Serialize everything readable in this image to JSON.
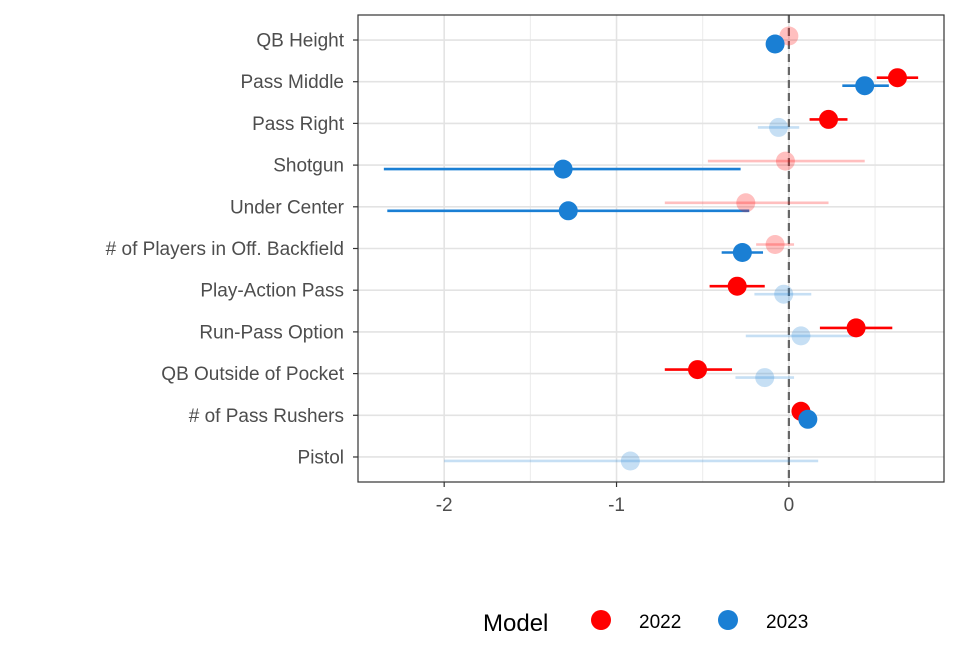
{
  "chart_data": {
    "type": "scatter",
    "subtype": "dot-and-whisker",
    "title": "",
    "xlabel": "",
    "ylabel": "",
    "xlim": [
      -2.5,
      0.9
    ],
    "x_ticks": [
      -2,
      -1,
      0
    ],
    "x_tick_labels": [
      "-2",
      "-1",
      "0"
    ],
    "reference_line": {
      "x": 0,
      "style": "dashed",
      "color": "#666666"
    },
    "grid": true,
    "legend": {
      "title": "Model",
      "position": "bottom"
    },
    "categories": [
      "QB Height",
      "Pass Middle",
      "Pass Right",
      "Shotgun",
      "Under Center",
      "# of Players in Off. Backfield",
      "Play-Action Pass",
      "Run-Pass Option",
      "QB Outside of Pocket",
      "# of Pass Rushers",
      "Pistol"
    ],
    "series": [
      {
        "name": "2022",
        "color": "#ff0000",
        "points": [
          {
            "category": "QB Height",
            "estimate": 0.0,
            "lower": null,
            "upper": null,
            "significant": false
          },
          {
            "category": "Pass Middle",
            "estimate": 0.63,
            "lower": 0.51,
            "upper": 0.75,
            "significant": true
          },
          {
            "category": "Pass Right",
            "estimate": 0.23,
            "lower": 0.12,
            "upper": 0.34,
            "significant": true
          },
          {
            "category": "Shotgun",
            "estimate": -0.02,
            "lower": -0.47,
            "upper": 0.44,
            "significant": false
          },
          {
            "category": "Under Center",
            "estimate": -0.25,
            "lower": -0.72,
            "upper": 0.23,
            "significant": false
          },
          {
            "category": "# of Players in Off. Backfield",
            "estimate": -0.08,
            "lower": -0.19,
            "upper": 0.03,
            "significant": false
          },
          {
            "category": "Play-Action Pass",
            "estimate": -0.3,
            "lower": -0.46,
            "upper": -0.14,
            "significant": true
          },
          {
            "category": "Run-Pass Option",
            "estimate": 0.39,
            "lower": 0.18,
            "upper": 0.6,
            "significant": true
          },
          {
            "category": "QB Outside of Pocket",
            "estimate": -0.53,
            "lower": -0.72,
            "upper": -0.33,
            "significant": true
          },
          {
            "category": "# of Pass Rushers",
            "estimate": 0.07,
            "lower": null,
            "upper": null,
            "significant": true
          }
        ]
      },
      {
        "name": "2023",
        "color": "#1a7fd4",
        "points": [
          {
            "category": "QB Height",
            "estimate": -0.08,
            "lower": null,
            "upper": null,
            "significant": true
          },
          {
            "category": "Pass Middle",
            "estimate": 0.44,
            "lower": 0.31,
            "upper": 0.58,
            "significant": true
          },
          {
            "category": "Pass Right",
            "estimate": -0.06,
            "lower": -0.18,
            "upper": 0.06,
            "significant": false
          },
          {
            "category": "Shotgun",
            "estimate": -1.31,
            "lower": -2.35,
            "upper": -0.28,
            "significant": true
          },
          {
            "category": "Under Center",
            "estimate": -1.28,
            "lower": -2.33,
            "upper": -0.23,
            "significant": true
          },
          {
            "category": "# of Players in Off. Backfield",
            "estimate": -0.27,
            "lower": -0.39,
            "upper": -0.15,
            "significant": true
          },
          {
            "category": "Play-Action Pass",
            "estimate": -0.03,
            "lower": -0.2,
            "upper": 0.13,
            "significant": false
          },
          {
            "category": "Run-Pass Option",
            "estimate": 0.07,
            "lower": -0.25,
            "upper": 0.38,
            "significant": false
          },
          {
            "category": "QB Outside of Pocket",
            "estimate": -0.14,
            "lower": -0.31,
            "upper": 0.03,
            "significant": false
          },
          {
            "category": "# of Pass Rushers",
            "estimate": 0.11,
            "lower": null,
            "upper": null,
            "significant": true
          },
          {
            "category": "Pistol",
            "estimate": -0.92,
            "lower": -2.0,
            "upper": 0.17,
            "significant": false
          }
        ]
      }
    ]
  }
}
